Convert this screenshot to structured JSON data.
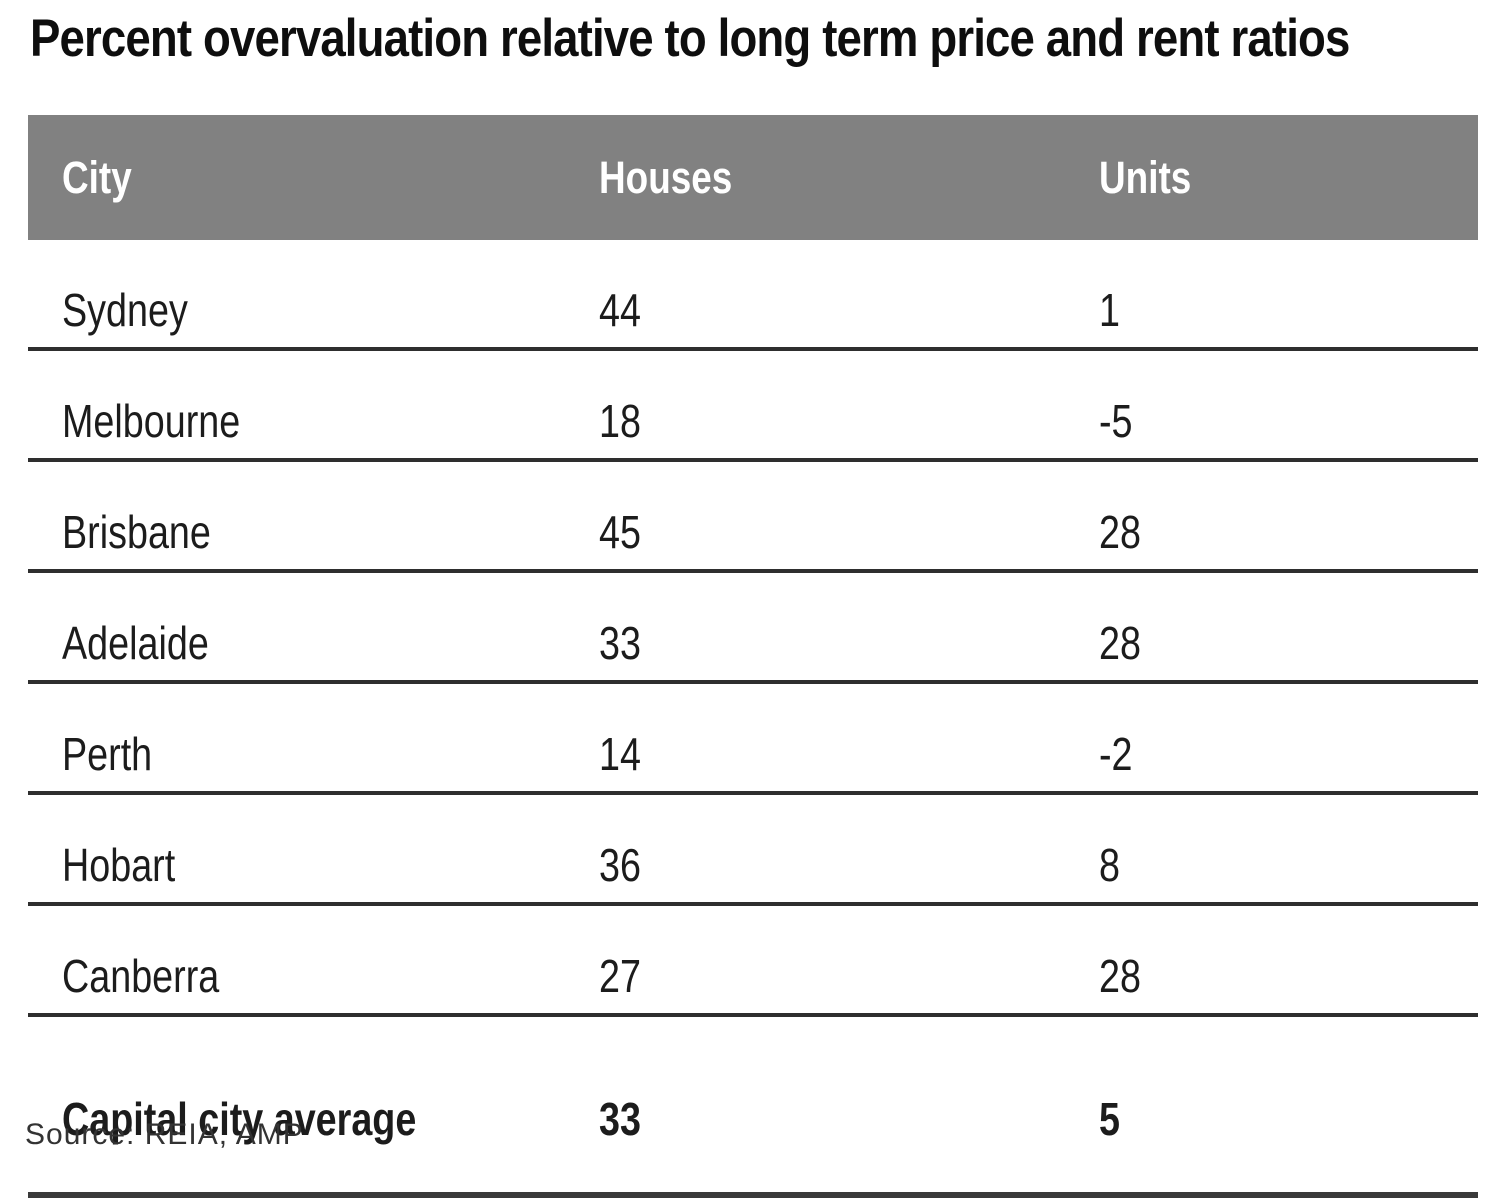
{
  "title": "Percent overvaluation relative to long term price and rent ratios",
  "source_note": "Source: REIA, AMP",
  "colors": {
    "header_bg": "#818181",
    "header_text": "#ffffff",
    "row_rule": "#2e2e2e",
    "body_text": "#1c1c1c"
  },
  "chart_data": {
    "type": "table",
    "title": "Percent overvaluation relative to long term price and rent ratios",
    "columns": [
      "City",
      "Houses",
      "Units"
    ],
    "rows": [
      [
        "Sydney",
        44,
        1
      ],
      [
        "Melbourne",
        18,
        -5
      ],
      [
        "Brisbane",
        45,
        28
      ],
      [
        "Adelaide",
        33,
        28
      ],
      [
        "Perth",
        14,
        -2
      ],
      [
        "Hobart",
        36,
        8
      ],
      [
        "Canberra",
        27,
        28
      ],
      [
        "Capital city average",
        33,
        5
      ]
    ],
    "emphasized_row": "Capital city average",
    "source": "REIA, AMP"
  }
}
